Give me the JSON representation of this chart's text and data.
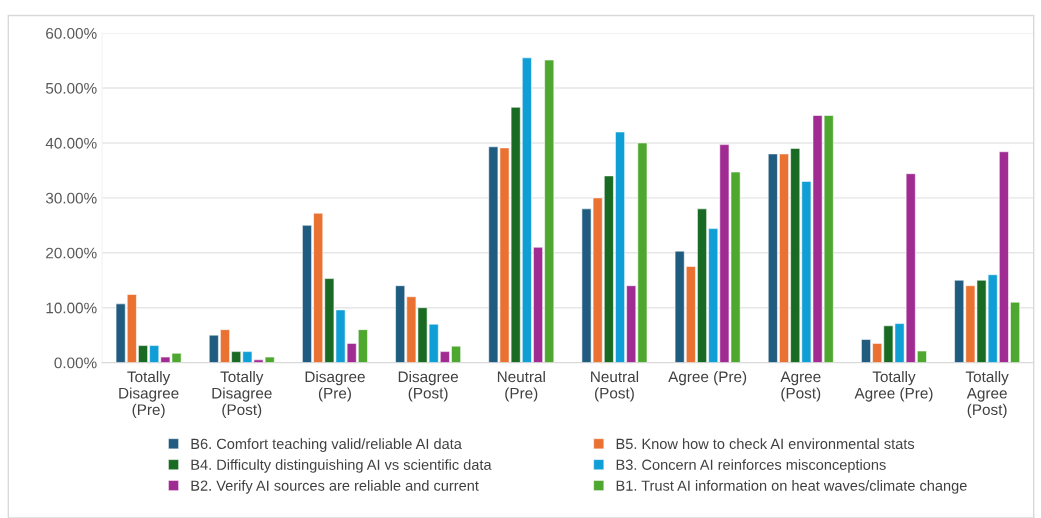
{
  "chart_data": {
    "type": "bar",
    "categories": [
      "Totally Disagree (Pre)",
      "Totally Disagree (Post)",
      "Disagree (Pre)",
      "Disagree (Post)",
      "Neutral (Pre)",
      "Neutral (Post)",
      "Agree (Pre)",
      "Agree (Post)",
      "Totally Agree (Pre)",
      "Totally Agree (Post)"
    ],
    "series": [
      {
        "name": "B6. Comfort teaching valid/reliable AI data",
        "color": "#1f5c80",
        "values": [
          10.7,
          5,
          25,
          14,
          39.3,
          28,
          20.3,
          38,
          4.2,
          15
        ]
      },
      {
        "name": "B5. Know how to check AI environmental stats",
        "color": "#e97132",
        "values": [
          12.4,
          6,
          27.2,
          12,
          39.1,
          30,
          17.5,
          38,
          3.5,
          14
        ]
      },
      {
        "name": "B4. Difficulty distinguishing AI vs scientific data",
        "color": "#196b24",
        "values": [
          3.1,
          2,
          15.3,
          10,
          46.5,
          34,
          28,
          39,
          6.7,
          15
        ]
      },
      {
        "name": "B3. Concern AI reinforces misconceptions",
        "color": "#0f9ed5",
        "values": [
          3.1,
          2,
          9.6,
          7,
          55.5,
          42,
          24.4,
          33,
          7.1,
          16
        ]
      },
      {
        "name": "B2. Verify AI sources are reliable and current",
        "color": "#a02b93",
        "values": [
          1,
          0.5,
          3.5,
          2,
          21,
          14,
          39.7,
          45,
          34.4,
          38.4
        ]
      },
      {
        "name": "B1. Trust AI information on heat waves/climate change",
        "color": "#4ea72e",
        "values": [
          1.7,
          1,
          6,
          3,
          55.1,
          40,
          34.7,
          45,
          2.1,
          11
        ]
      }
    ],
    "ylim": [
      0,
      60
    ],
    "yticks": [
      {
        "value": 0,
        "label": "0.00%"
      },
      {
        "value": 10,
        "label": "10.00%"
      },
      {
        "value": 20,
        "label": "20.00%"
      },
      {
        "value": 30,
        "label": "30.00%"
      },
      {
        "value": 40,
        "label": "40.00%"
      },
      {
        "value": 50,
        "label": "50.00%"
      },
      {
        "value": 60,
        "label": "60.00%"
      }
    ],
    "grid": "y",
    "legend": "bottom"
  }
}
